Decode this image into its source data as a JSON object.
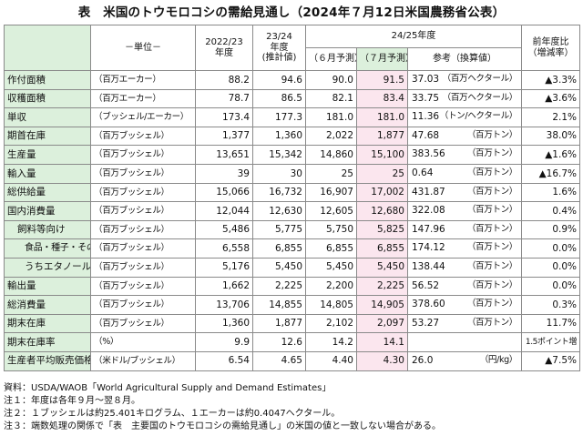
{
  "title": "表　米国のトウモロコシの需給見通し（2024年７月12日米国農務省公表）",
  "headers": {
    "unit": "－単位－",
    "y2223": "2022/23\n年度",
    "y2324": "23/24\n年度\n(推計値)",
    "y2425": "24/25年度",
    "june": "（６月予測）",
    "july": "（７月予測）",
    "ref": "参考（換算値）",
    "yoy": "前年度比\n（増減率）"
  },
  "rows": [
    {
      "label": "作付面積",
      "unit": "（百万エーカー）",
      "v2223": "88.2",
      "v2324": "94.6",
      "june": "90.0",
      "july": "91.5",
      "ref": "37.03",
      "ref_unit": "（百万ヘクタール）",
      "yoy": "▲3.3%"
    },
    {
      "label": "収穫面積",
      "unit": "（百万エーカー）",
      "v2223": "78.7",
      "v2324": "86.5",
      "june": "82.1",
      "july": "83.4",
      "ref": "33.75",
      "ref_unit": "（百万ヘクタール）",
      "yoy": "▲3.6%"
    },
    {
      "label": "単収",
      "unit": "（ブッシェル/エーカー）",
      "v2223": "173.4",
      "v2324": "177.3",
      "june": "181.0",
      "july": "181.0",
      "ref": "11.36",
      "ref_unit": "（トン/ヘクタール）",
      "yoy": "2.1%"
    },
    {
      "label": "期首在庫",
      "unit": "（百万ブッシェル）",
      "v2223": "1,377",
      "v2324": "1,360",
      "june": "2,022",
      "july": "1,877",
      "ref": "47.68",
      "ref_unit": "（百万トン）",
      "yoy": "38.0%"
    },
    {
      "label": "生産量",
      "unit": "（百万ブッシェル）",
      "v2223": "13,651",
      "v2324": "15,342",
      "june": "14,860",
      "july": "15,100",
      "ref": "383.56",
      "ref_unit": "（百万トン）",
      "yoy": "▲1.6%"
    },
    {
      "label": "輸入量",
      "unit": "（百万ブッシェル）",
      "v2223": "39",
      "v2324": "30",
      "june": "25",
      "july": "25",
      "ref": "0.64",
      "ref_unit": "（百万トン）",
      "yoy": "▲16.7%"
    },
    {
      "label": "総供給量",
      "unit": "（百万ブッシェル）",
      "v2223": "15,066",
      "v2324": "16,732",
      "june": "16,907",
      "july": "17,002",
      "ref": "431.87",
      "ref_unit": "（百万トン）",
      "yoy": "1.6%"
    },
    {
      "label": "国内消費量",
      "unit": "（百万ブッシェル）",
      "v2223": "12,044",
      "v2324": "12,630",
      "june": "12,605",
      "july": "12,680",
      "ref": "322.08",
      "ref_unit": "（百万トン）",
      "yoy": "0.4%"
    },
    {
      "label": "飼料等向け",
      "unit": "（百万ブッシェル）",
      "v2223": "5,486",
      "v2324": "5,775",
      "june": "5,750",
      "july": "5,825",
      "ref": "147.96",
      "ref_unit": "（百万トン）",
      "yoy": "0.9%"
    },
    {
      "label": "食品・種子・その他工業向け",
      "unit": "（百万ブッシェル）",
      "v2223": "6,558",
      "v2324": "6,855",
      "june": "6,855",
      "july": "6,855",
      "ref": "174.12",
      "ref_unit": "（百万トン）",
      "yoy": "0.0%"
    },
    {
      "label": "うちエタノール向け",
      "unit": "（百万ブッシェル）",
      "v2223": "5,176",
      "v2324": "5,450",
      "june": "5,450",
      "july": "5,450",
      "ref": "138.44",
      "ref_unit": "（百万トン）",
      "yoy": "0.0%"
    },
    {
      "label": "輸出量",
      "unit": "（百万ブッシェル）",
      "v2223": "1,662",
      "v2324": "2,225",
      "june": "2,200",
      "july": "2,225",
      "ref": "56.52",
      "ref_unit": "（百万トン）",
      "yoy": "0.0%"
    },
    {
      "label": "総消費量",
      "unit": "（百万ブッシェル）",
      "v2223": "13,706",
      "v2324": "14,855",
      "june": "14,805",
      "july": "14,905",
      "ref": "378.60",
      "ref_unit": "（百万トン）",
      "yoy": "0.3%"
    },
    {
      "label": "期末在庫",
      "unit": "（百万ブッシェル）",
      "v2223": "1,360",
      "v2324": "1,877",
      "june": "2,102",
      "july": "2,097",
      "ref": "53.27",
      "ref_unit": "（百万トン）",
      "yoy": "11.7%"
    },
    {
      "label": "期末在庫率",
      "unit": "（%）",
      "v2223": "9.9",
      "v2324": "12.6",
      "june": "14.2",
      "july": "14.1",
      "ref": "",
      "ref_unit": "",
      "yoy": "1.5ポイント増"
    },
    {
      "label": "生産者平均販売価格",
      "unit": "（米ドル/ブッシェル）",
      "v2223": "6.54",
      "v2324": "4.65",
      "june": "4.40",
      "july": "4.30",
      "ref": "26.0",
      "ref_unit": "（円/kg）",
      "yoy": "▲7.5%"
    }
  ],
  "notes": [
    "資料：USDA/WAOB「World Agricultural Supply and Demand Estimates」",
    "注１：年度は各年９月～翌８月。",
    "注２：１ブッシェルは約25.401キログラム、１エーカーは約0.4047ヘクタール。",
    "注３：端数処理の関係で「表　主要国のトウモロコシの需給見通し」の米国の値と一致しない場合がある。"
  ]
}
